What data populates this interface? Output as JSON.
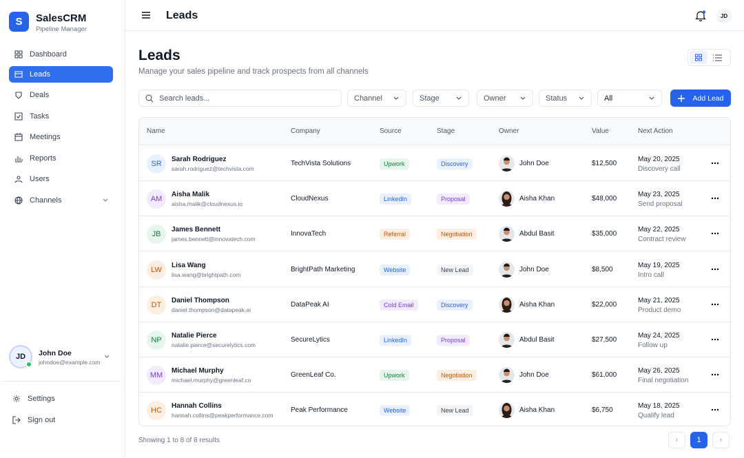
{
  "sidebar": {
    "logo": "S",
    "brand": "SalesCRM",
    "tagline": "Pipeline Manager",
    "nav": [
      "Dashboard",
      "Leads",
      "Deals",
      "Tasks",
      "Meetings",
      "Reports",
      "Users",
      "Channels"
    ],
    "user": {
      "initials": "JD",
      "name": "John Doe",
      "email": "johndoe@example.com"
    },
    "footer": [
      "Settings",
      "Sign out"
    ]
  },
  "topbar": {
    "title": "Leads",
    "avatar": "JD"
  },
  "page": {
    "title": "Leads",
    "subtitle": "Manage your sales pipeline and track prospects from all channels",
    "search": "Search leads...",
    "filters": [
      "Channel",
      "Stage",
      "Owner",
      "Status",
      "All"
    ],
    "add_button": "Add Lead"
  },
  "table": {
    "columns": [
      "Name",
      "Company",
      "Source",
      "Stage",
      "Owner",
      "Value",
      "Next Action"
    ],
    "rows": [
      {
        "initials": "SR",
        "name": "Sarah Rodriguez",
        "email": "sarah.rodriguez@techvista.com",
        "company": "TechVista Solutions",
        "source": "Upwork",
        "stage": "Discovery",
        "owner": "John Doe",
        "value": "$12,500",
        "date": "May 20, 2025",
        "action": "Discovery call"
      },
      {
        "initials": "AM",
        "name": "Aisha Malik",
        "email": "aisha.malik@cloudnexus.io",
        "company": "CloudNexus",
        "source": "LinkedIn",
        "stage": "Proposal",
        "owner": "Aisha Khan",
        "value": "$48,000",
        "date": "May 23, 2025",
        "action": "Send proposal"
      },
      {
        "initials": "JB",
        "name": "James Bennett",
        "email": "james.bennett@innovatech.com",
        "company": "InnovaTech",
        "source": "Referral",
        "stage": "Negotiation",
        "owner": "Abdul Basit",
        "value": "$35,000",
        "date": "May 22, 2025",
        "action": "Contract review"
      },
      {
        "initials": "LW",
        "name": "Lisa Wang",
        "email": "lisa.wang@brightpath.com",
        "company": "BrightPath Marketing",
        "source": "Website",
        "stage": "New Lead",
        "owner": "John Doe",
        "value": "$8,500",
        "date": "May 19, 2025",
        "action": "Intro call"
      },
      {
        "initials": "DT",
        "name": "Daniel Thompson",
        "email": "daniel.thompson@datapeak.ai",
        "company": "DataPeak AI",
        "source": "Cold Email",
        "stage": "Discovery",
        "owner": "Aisha Khan",
        "value": "$22,000",
        "date": "May 21, 2025",
        "action": "Product demo"
      },
      {
        "initials": "NP",
        "name": "Natalie Pierce",
        "email": "natalie.pierce@securelytics.com",
        "company": "SecureLytics",
        "source": "LinkedIn",
        "stage": "Proposal",
        "owner": "Abdul Basit",
        "value": "$27,500",
        "date": "May 24, 2025",
        "action": "Follow up"
      },
      {
        "initials": "MM",
        "name": "Michael Murphy",
        "email": "michael.murphy@greenleaf.co",
        "company": "GreenLeaf Co.",
        "source": "Upwork",
        "stage": "Negotiation",
        "owner": "John Doe",
        "value": "$61,000",
        "date": "May 26, 2025",
        "action": "Final negotiation"
      },
      {
        "initials": "HC",
        "name": "Hannah Collins",
        "email": "hannah.collins@peakperformance.com",
        "company": "Peak Performance",
        "source": "Website",
        "stage": "New Lead",
        "owner": "Aisha Khan",
        "value": "$6,750",
        "date": "May 18, 2025",
        "action": "Qualify lead"
      }
    ]
  },
  "footer": {
    "summary": "Showing 1 to 8 of 8 results",
    "page": 1
  }
}
